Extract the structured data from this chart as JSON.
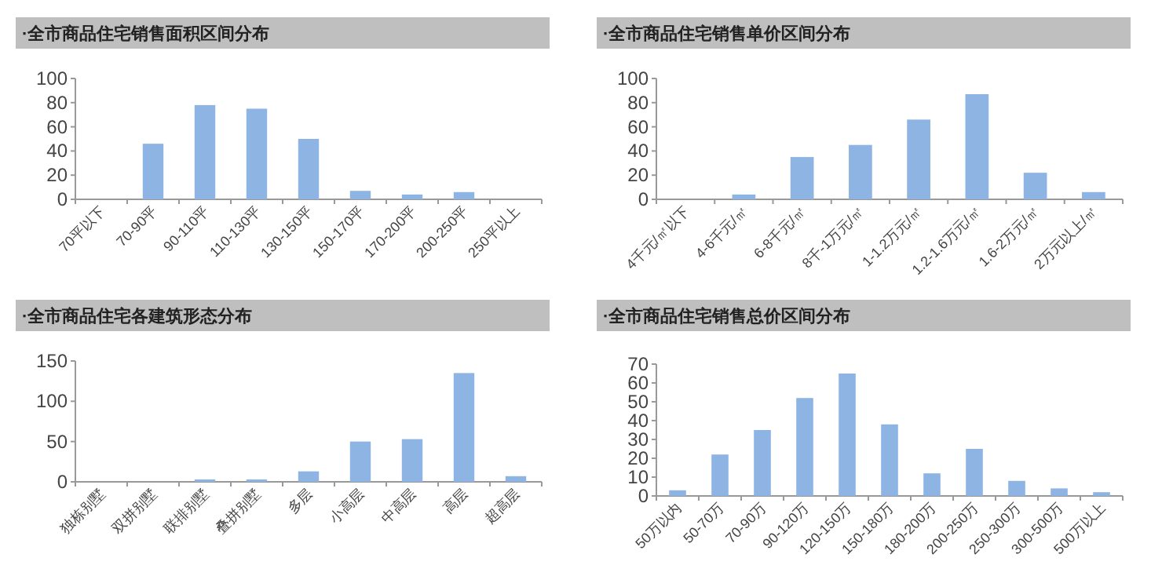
{
  "chart_data": [
    {
      "type": "bar",
      "title": "·全市商品住宅销售面积区间分布",
      "categories": [
        "70平以下",
        "70-90平",
        "90-110平",
        "110-130平",
        "130-150平",
        "150-170平",
        "170-200平",
        "200-250平",
        "250平以上"
      ],
      "values": [
        0,
        46,
        78,
        75,
        50,
        7,
        4,
        6,
        0
      ],
      "color": "#8db4e2",
      "ylim": [
        0,
        100
      ],
      "yticks": [
        0,
        20,
        40,
        60,
        80,
        100
      ],
      "grid": false,
      "legend": false
    },
    {
      "type": "bar",
      "title": "·全市商品住宅销售单价区间分布",
      "categories": [
        "4千元/㎡以下",
        "4-6千元/㎡",
        "6-8千元/㎡",
        "8千-1万元/㎡",
        "1-1.2万元/㎡",
        "1.2-1.6万元/㎡",
        "1.6-2万元/㎡",
        "2万元以上/㎡"
      ],
      "values": [
        0,
        4,
        35,
        45,
        66,
        87,
        22,
        6
      ],
      "color": "#8db4e2",
      "ylim": [
        0,
        100
      ],
      "yticks": [
        0,
        20,
        40,
        60,
        80,
        100
      ],
      "grid": false,
      "legend": false
    },
    {
      "type": "bar",
      "title": "·全市商品住宅各建筑形态分布",
      "categories": [
        "独栋别墅",
        "双拼别墅",
        "联排别墅",
        "叠拼别墅",
        "多层",
        "小高层",
        "中高层",
        "高层",
        "超高层"
      ],
      "values": [
        0,
        0,
        3,
        3,
        13,
        50,
        53,
        135,
        7
      ],
      "color": "#8db4e2",
      "ylim": [
        0,
        150
      ],
      "yticks": [
        0,
        50,
        100,
        150
      ],
      "grid": false,
      "legend": false
    },
    {
      "type": "bar",
      "title": "·全市商品住宅销售总价区间分布",
      "categories": [
        "50万以内",
        "50-70万",
        "70-90万",
        "90-120万",
        "120-150万",
        "150-180万",
        "180-200万",
        "200-250万",
        "250-300万",
        "300-500万",
        "500万以上"
      ],
      "values": [
        3,
        22,
        35,
        52,
        65,
        38,
        12,
        25,
        8,
        4,
        2
      ],
      "color": "#8db4e2",
      "ylim": [
        0,
        70
      ],
      "yticks": [
        0,
        10,
        20,
        30,
        40,
        50,
        60,
        70
      ],
      "grid": false,
      "legend": false
    }
  ]
}
